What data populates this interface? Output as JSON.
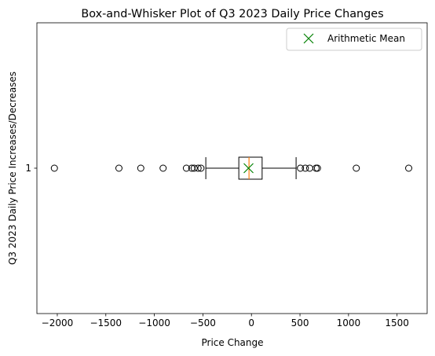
{
  "chart_data": {
    "type": "boxplot",
    "orientation": "horizontal",
    "title": "Box-and-Whisker Plot of Q3 2023 Daily Price Changes",
    "xlabel": "Price Change",
    "ylabel": "Q3 2023 Daily Price Increases/Decreases",
    "xlim": [
      -2210,
      1810
    ],
    "xticks": [
      -2000,
      -1500,
      -1000,
      -500,
      0,
      500,
      1000,
      1500
    ],
    "xtick_labels": [
      "−2000",
      "−1500",
      "−1000",
      "−500",
      "0",
      "500",
      "1000",
      "1500"
    ],
    "yticks": [
      1
    ],
    "ytick_labels": [
      "1"
    ],
    "grid": false,
    "legend": {
      "position": "top-right",
      "entries": [
        {
          "label": "Arithmetic Mean",
          "marker": "x",
          "color": "#008000"
        }
      ]
    },
    "box": {
      "whisker_low": -470,
      "q1": -130,
      "median": -25,
      "q3": 110,
      "whisker_high": 460,
      "mean": -30
    },
    "outliers": [
      -2030,
      -1365,
      -1140,
      -910,
      -670,
      -615,
      -590,
      -550,
      -520,
      505,
      555,
      600,
      665,
      680,
      1080,
      1620
    ],
    "colors": {
      "box": "#000000",
      "median": "#ff7f0e",
      "mean": "#008000",
      "outlier": "#000000"
    }
  }
}
